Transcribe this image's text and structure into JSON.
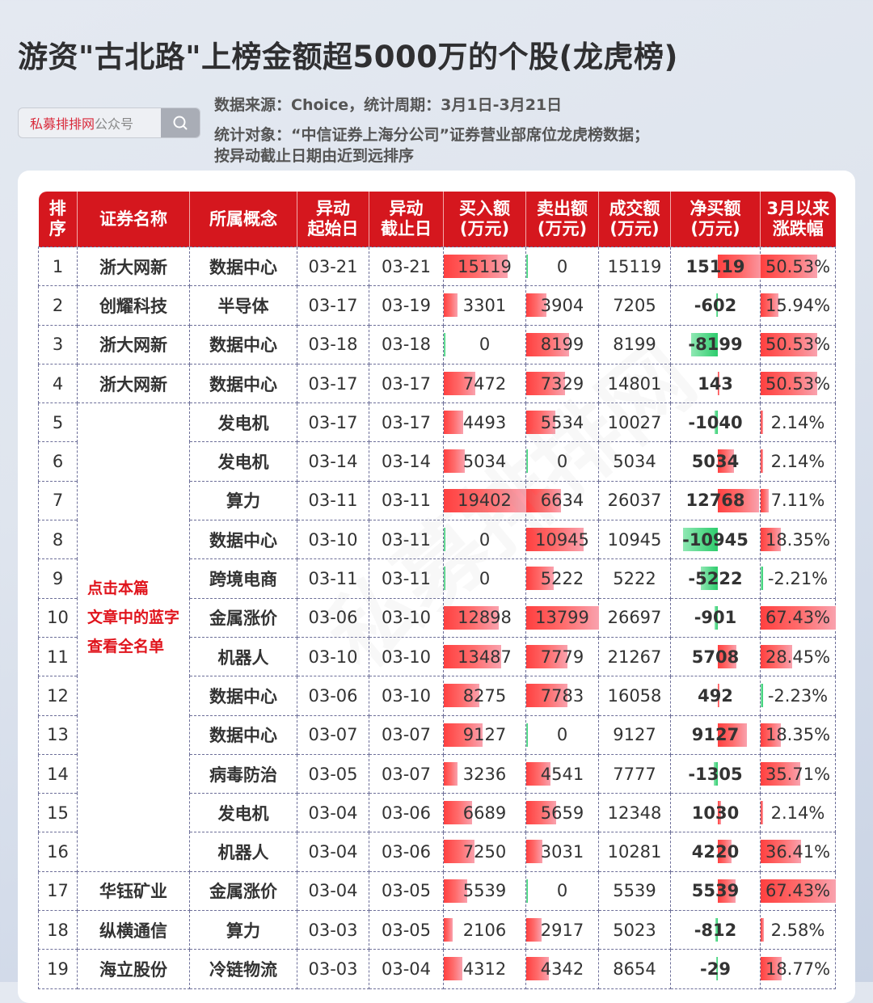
{
  "title": "游资\"古北路\"上榜金额超5000万的个股(龙虎榜)",
  "search": {
    "brand": "私募排排网",
    "suffix": "公众号",
    "icon": "search-icon"
  },
  "meta": {
    "source": "数据来源：Choice，统计周期：3月1日-3月21日",
    "target": "统计对象：“中信证券上海分公司”证券营业部席位龙虎榜数据；",
    "sort": "按异动截止日期由近到远排序"
  },
  "note": [
    "点击本篇",
    "文章中的蓝字",
    "查看全名单"
  ],
  "watermark": "私募排排网",
  "colors": {
    "header": "#d5171e",
    "positive_bar": "#ff4a4a",
    "negative_bar": "#2dcc6c",
    "note": "#e0141c"
  },
  "table": {
    "headers": [
      [
        "排",
        "序"
      ],
      [
        "证券名称"
      ],
      [
        "所属概念"
      ],
      [
        "异动",
        "起始日"
      ],
      [
        "异动",
        "截止日"
      ],
      [
        "买入额",
        "(万元)"
      ],
      [
        "卖出额",
        "(万元)"
      ],
      [
        "成交额",
        "(万元)"
      ],
      [
        "净买额",
        "(万元)"
      ],
      [
        "3月以来",
        "涨跌幅"
      ]
    ],
    "rows": [
      {
        "rank": "1",
        "name": "浙大网新",
        "concept": "数据中心",
        "start": "03-21",
        "end": "03-21",
        "buy": "15119",
        "sell": "0",
        "total": "15119",
        "net": "15119",
        "chg": "50.53%"
      },
      {
        "rank": "2",
        "name": "创耀科技",
        "concept": "半导体",
        "start": "03-17",
        "end": "03-19",
        "buy": "3301",
        "sell": "3904",
        "total": "7205",
        "net": "-602",
        "chg": "15.94%"
      },
      {
        "rank": "3",
        "name": "浙大网新",
        "concept": "数据中心",
        "start": "03-18",
        "end": "03-18",
        "buy": "0",
        "sell": "8199",
        "total": "8199",
        "net": "-8199",
        "chg": "50.53%"
      },
      {
        "rank": "4",
        "name": "浙大网新",
        "concept": "数据中心",
        "start": "03-17",
        "end": "03-17",
        "buy": "7472",
        "sell": "7329",
        "total": "14801",
        "net": "143",
        "chg": "50.53%"
      },
      {
        "rank": "5",
        "name": "",
        "concept": "发电机",
        "start": "03-17",
        "end": "03-17",
        "buy": "4493",
        "sell": "5534",
        "total": "10027",
        "net": "-1040",
        "chg": "2.14%"
      },
      {
        "rank": "6",
        "name": "",
        "concept": "发电机",
        "start": "03-14",
        "end": "03-14",
        "buy": "5034",
        "sell": "0",
        "total": "5034",
        "net": "5034",
        "chg": "2.14%"
      },
      {
        "rank": "7",
        "name": "",
        "concept": "算力",
        "start": "03-11",
        "end": "03-11",
        "buy": "19402",
        "sell": "6634",
        "total": "26037",
        "net": "12768",
        "chg": "7.11%"
      },
      {
        "rank": "8",
        "name": "",
        "concept": "数据中心",
        "start": "03-10",
        "end": "03-11",
        "buy": "0",
        "sell": "10945",
        "total": "10945",
        "net": "-10945",
        "chg": "18.35%"
      },
      {
        "rank": "9",
        "name": "",
        "concept": "跨境电商",
        "start": "03-11",
        "end": "03-11",
        "buy": "0",
        "sell": "5222",
        "total": "5222",
        "net": "-5222",
        "chg": "-2.21%"
      },
      {
        "rank": "10",
        "name": "",
        "concept": "金属涨价",
        "start": "03-06",
        "end": "03-10",
        "buy": "12898",
        "sell": "13799",
        "total": "26697",
        "net": "-901",
        "chg": "67.43%"
      },
      {
        "rank": "11",
        "name": "",
        "concept": "机器人",
        "start": "03-10",
        "end": "03-10",
        "buy": "13487",
        "sell": "7779",
        "total": "21267",
        "net": "5708",
        "chg": "28.45%"
      },
      {
        "rank": "12",
        "name": "",
        "concept": "数据中心",
        "start": "03-06",
        "end": "03-10",
        "buy": "8275",
        "sell": "7783",
        "total": "16058",
        "net": "492",
        "chg": "-2.23%"
      },
      {
        "rank": "13",
        "name": "",
        "concept": "数据中心",
        "start": "03-07",
        "end": "03-07",
        "buy": "9127",
        "sell": "0",
        "total": "9127",
        "net": "9127",
        "chg": "18.35%"
      },
      {
        "rank": "14",
        "name": "",
        "concept": "病毒防治",
        "start": "03-05",
        "end": "03-07",
        "buy": "3236",
        "sell": "4541",
        "total": "7777",
        "net": "-1305",
        "chg": "35.71%"
      },
      {
        "rank": "15",
        "name": "",
        "concept": "发电机",
        "start": "03-04",
        "end": "03-06",
        "buy": "6689",
        "sell": "5659",
        "total": "12348",
        "net": "1030",
        "chg": "2.14%"
      },
      {
        "rank": "16",
        "name": "",
        "concept": "机器人",
        "start": "03-04",
        "end": "03-06",
        "buy": "7250",
        "sell": "3031",
        "total": "10281",
        "net": "4220",
        "chg": "36.41%"
      },
      {
        "rank": "17",
        "name": "华钰矿业",
        "concept": "金属涨价",
        "start": "03-04",
        "end": "03-05",
        "buy": "5539",
        "sell": "0",
        "total": "5539",
        "net": "5539",
        "chg": "67.43%"
      },
      {
        "rank": "18",
        "name": "纵横通信",
        "concept": "算力",
        "start": "03-03",
        "end": "03-05",
        "buy": "2106",
        "sell": "2917",
        "total": "5023",
        "net": "-812",
        "chg": "2.58%"
      },
      {
        "rank": "19",
        "name": "海立股份",
        "concept": "冷链物流",
        "start": "03-03",
        "end": "03-04",
        "buy": "4312",
        "sell": "4342",
        "total": "8654",
        "net": "-29",
        "chg": "18.77%"
      }
    ]
  }
}
